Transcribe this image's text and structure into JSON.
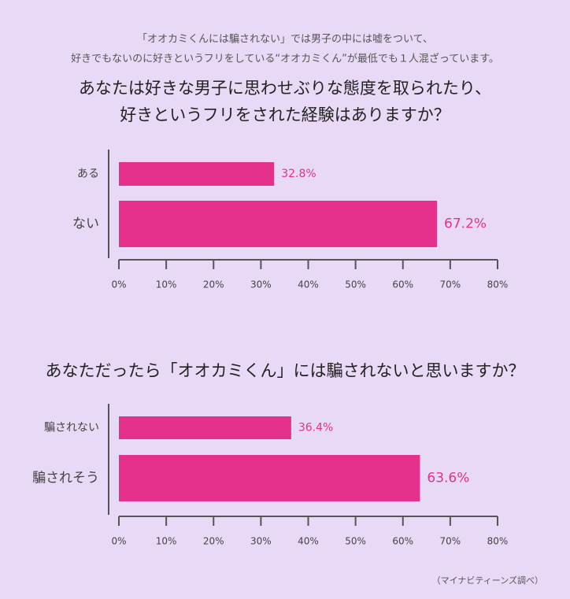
{
  "header": [
    "「オオカミくんには騙されない」では男子の中には嘘をついて、",
    "好きでもないのに好きというフリをしている“オオカミくん”が最低でも１人混ざっています。"
  ],
  "chart_data": [
    {
      "type": "bar",
      "orientation": "horizontal",
      "title": [
        "あなたは好きな男子に思わせぶりな態度を取られたり、",
        "好きというフリをされた経験はありますか？"
      ],
      "categories": [
        "ある",
        "ない"
      ],
      "values": [
        32.8,
        67.2
      ],
      "value_labels": [
        "32.8%",
        "67.2%"
      ],
      "color": "#e5318c",
      "xlim": [
        0,
        80
      ],
      "xticks": [
        {
          "value": 0,
          "label": "0%"
        },
        {
          "value": 10,
          "label": "10%"
        },
        {
          "value": 20,
          "label": "20%"
        },
        {
          "value": 30,
          "label": "30%"
        },
        {
          "value": 40,
          "label": "40%"
        },
        {
          "value": 50,
          "label": "50%"
        },
        {
          "value": 60,
          "label": "60%"
        },
        {
          "value": 70,
          "label": "70%"
        },
        {
          "value": 80,
          "label": "80%"
        }
      ]
    },
    {
      "type": "bar",
      "orientation": "horizontal",
      "title": [
        "あなただったら「オオカミくん」には騙されないと思いますか？"
      ],
      "categories": [
        "騙されない",
        "騙されそう"
      ],
      "values": [
        36.4,
        63.6
      ],
      "value_labels": [
        "36.4%",
        "63.6%"
      ],
      "color": "#e5318c",
      "xlim": [
        0,
        80
      ],
      "xticks": [
        {
          "value": 0,
          "label": "0%"
        },
        {
          "value": 10,
          "label": "10%"
        },
        {
          "value": 20,
          "label": "20%"
        },
        {
          "value": 30,
          "label": "30%"
        },
        {
          "value": 40,
          "label": "40%"
        },
        {
          "value": 50,
          "label": "50%"
        },
        {
          "value": 60,
          "label": "60%"
        },
        {
          "value": 70,
          "label": "70%"
        },
        {
          "value": 80,
          "label": "80%"
        }
      ]
    }
  ],
  "source": "（マイナビティーンズ調べ）"
}
